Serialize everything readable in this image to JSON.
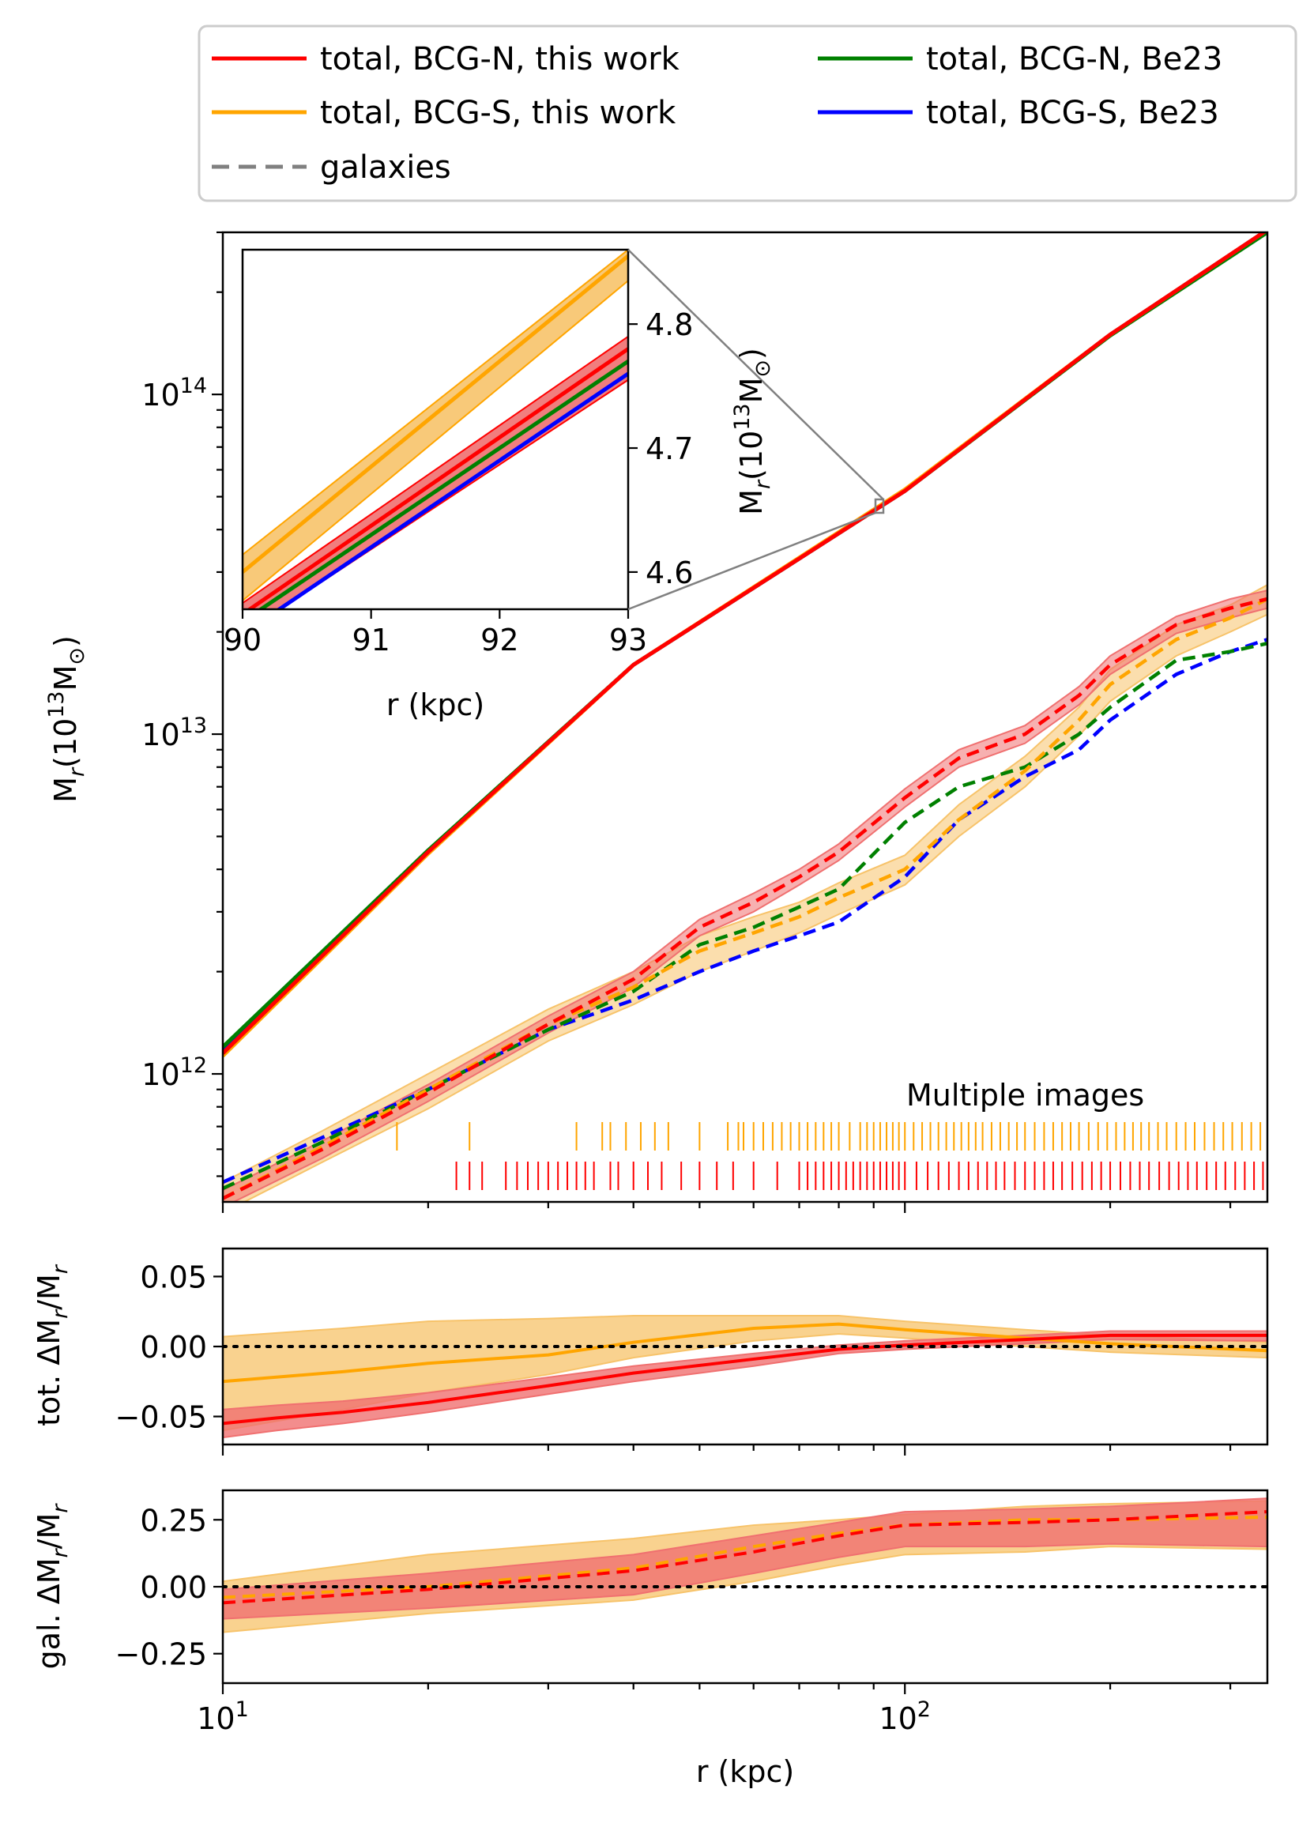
{
  "colors": {
    "bcg_n_this": "#ff0000",
    "bcg_s_this": "#ffa500",
    "bcg_n_be23": "#008000",
    "bcg_s_be23": "#0000ff",
    "galaxies": "#808080",
    "band_red": "#f07070",
    "band_orange": "#f7c36a"
  },
  "legend": {
    "entries": [
      {
        "label": "total, BCG-N, this work",
        "color": "#ff0000",
        "style": "solid"
      },
      {
        "label": "total, BCG-S, this work",
        "color": "#ffa500",
        "style": "solid"
      },
      {
        "label": "galaxies",
        "color": "#808080",
        "style": "dashed"
      },
      {
        "label": "total, BCG-N, Be23",
        "color": "#008000",
        "style": "solid"
      },
      {
        "label": "total, BCG-S, Be23",
        "color": "#0000ff",
        "style": "solid"
      }
    ]
  },
  "chart_data": [
    {
      "type": "line",
      "title": "",
      "xscale": "log",
      "yscale": "log",
      "xlim": [
        10,
        340
      ],
      "ylim": [
        420000000000.0,
        300000000000000.0
      ],
      "xlabel": "",
      "ylabel": "M_r(10^13 M_⊙)",
      "xticks": [
        {
          "label": "",
          "value": 10
        },
        {
          "label": "",
          "value": 100
        }
      ],
      "yticks": [
        {
          "base": "10",
          "exp": "12",
          "value": 1000000000000.0
        },
        {
          "base": "10",
          "exp": "13",
          "value": 10000000000000.0
        },
        {
          "base": "10",
          "exp": "14",
          "value": 100000000000000.0
        }
      ],
      "series": [
        {
          "name": "total, BCG-S, Be23",
          "style": "solid",
          "x": [
            10,
            20,
            40,
            100,
            200,
            340
          ],
          "y": [
            1180000000000.0,
            4500000000000.0,
            16000000000000.0,
            52000000000000.0,
            150000000000000.0,
            305000000000000.0
          ]
        },
        {
          "name": "total, BCG-N, Be23",
          "style": "solid",
          "x": [
            10,
            20,
            40,
            100,
            200,
            340
          ],
          "y": [
            1200000000000.0,
            4550000000000.0,
            16000000000000.0,
            52000000000000.0,
            149000000000000.0,
            300000000000000.0
          ]
        },
        {
          "name": "total, BCG-S, this work",
          "style": "solid",
          "x": [
            10,
            20,
            40,
            100,
            200,
            340
          ],
          "y": [
            1130000000000.0,
            4450000000000.0,
            16000000000000.0,
            52500000000000.0,
            150000000000000.0,
            305000000000000.0
          ]
        },
        {
          "name": "total, BCG-N, this work",
          "style": "solid",
          "x": [
            10,
            20,
            40,
            100,
            200,
            340
          ],
          "y": [
            1150000000000.0,
            4500000000000.0,
            16000000000000.0,
            52000000000000.0,
            150000000000000.0,
            305000000000000.0
          ]
        },
        {
          "name": "galaxies, BCG-S, Be23",
          "style": "dashed",
          "x": [
            10,
            14,
            20,
            30,
            40,
            50,
            60,
            70,
            80,
            100,
            120,
            150,
            180,
            200,
            250,
            300,
            340
          ],
          "y": [
            480000000000.0,
            650000000000.0,
            900000000000.0,
            1350000000000.0,
            1650000000000.0,
            2000000000000.0,
            2300000000000.0,
            2550000000000.0,
            2800000000000.0,
            3800000000000.0,
            5600000000000.0,
            7500000000000.0,
            9000000000000.0,
            11000000000000.0,
            15000000000000.0,
            17500000000000.0,
            19000000000000.0
          ]
        },
        {
          "name": "galaxies, BCG-N, Be23",
          "style": "dashed",
          "x": [
            10,
            14,
            20,
            30,
            40,
            50,
            60,
            70,
            80,
            100,
            120,
            150,
            180,
            200,
            250,
            300,
            340
          ],
          "y": [
            460000000000.0,
            630000000000.0,
            900000000000.0,
            1350000000000.0,
            1750000000000.0,
            2400000000000.0,
            2700000000000.0,
            3100000000000.0,
            3500000000000.0,
            5500000000000.0,
            7000000000000.0,
            8000000000000.0,
            10000000000000.0,
            12000000000000.0,
            16500000000000.0,
            17500000000000.0,
            18500000000000.0
          ]
        },
        {
          "name": "galaxies, BCG-S, this work",
          "style": "dashed",
          "x": [
            10,
            14,
            20,
            30,
            40,
            50,
            60,
            70,
            80,
            100,
            120,
            150,
            180,
            200,
            250,
            300,
            340
          ],
          "y": [
            430000000000.0,
            610000000000.0,
            900000000000.0,
            1400000000000.0,
            1800000000000.0,
            2300000000000.0,
            2600000000000.0,
            2900000000000.0,
            3300000000000.0,
            4000000000000.0,
            5600000000000.0,
            7800000000000.0,
            11000000000000.0,
            14000000000000.0,
            19000000000000.0,
            22000000000000.0,
            25000000000000.0
          ]
        },
        {
          "name": "galaxies, BCG-N, this work",
          "style": "dashed",
          "x": [
            10,
            14,
            20,
            30,
            40,
            50,
            60,
            70,
            80,
            100,
            120,
            150,
            180,
            200,
            250,
            300,
            340
          ],
          "y": [
            430000000000.0,
            600000000000.0,
            880000000000.0,
            1400000000000.0,
            1900000000000.0,
            2700000000000.0,
            3200000000000.0,
            3800000000000.0,
            4500000000000.0,
            6500000000000.0,
            8500000000000.0,
            10000000000000.0,
            13000000000000.0,
            16000000000000.0,
            21000000000000.0,
            23500000000000.0,
            25000000000000.0
          ]
        }
      ],
      "bands": [
        {
          "name": "galaxies, BCG-S, this work",
          "x": [
            10,
            14,
            20,
            30,
            40,
            50,
            60,
            70,
            80,
            100,
            120,
            150,
            180,
            200,
            250,
            300,
            340
          ],
          "lower": [
            390000000000.0,
            550000000000.0,
            790000000000.0,
            1250000000000.0,
            1600000000000.0,
            2000000000000.0,
            2300000000000.0,
            2600000000000.0,
            2950000000000.0,
            3600000000000.0,
            5000000000000.0,
            7000000000000.0,
            9900000000000.0,
            12500000000000.0,
            17000000000000.0,
            20000000000000.0,
            22500000000000.0
          ],
          "upper": [
            480000000000.0,
            680000000000.0,
            1000000000000.0,
            1550000000000.0,
            2000000000000.0,
            2550000000000.0,
            2900000000000.0,
            3200000000000.0,
            3650000000000.0,
            4400000000000.0,
            6200000000000.0,
            8600000000000.0,
            12000000000000.0,
            15500000000000.0,
            21000000000000.0,
            24000000000000.0,
            27500000000000.0
          ]
        },
        {
          "name": "galaxies, BCG-N, this work",
          "x": [
            10,
            14,
            20,
            30,
            40,
            50,
            60,
            70,
            80,
            100,
            120,
            150,
            180,
            200,
            250,
            300,
            340
          ],
          "lower": [
            405000000000.0,
            565000000000.0,
            830000000000.0,
            1320000000000.0,
            1800000000000.0,
            2550000000000.0,
            3000000000000.0,
            3600000000000.0,
            4250000000000.0,
            6100000000000.0,
            8000000000000.0,
            9400000000000.0,
            12200000000000.0,
            15000000000000.0,
            19800000000000.0,
            22000000000000.0,
            23500000000000.0
          ],
          "upper": [
            455000000000.0,
            635000000000.0,
            930000000000.0,
            1480000000000.0,
            2000000000000.0,
            2850000000000.0,
            3400000000000.0,
            4000000000000.0,
            4750000000000.0,
            6900000000000.0,
            9000000000000.0,
            10600000000000.0,
            13800000000000.0,
            17000000000000.0,
            22200000000000.0,
            25000000000000.0,
            26500000000000.0
          ]
        }
      ],
      "annotation": "Multiple images",
      "multiple_images": {
        "BCG-S": {
          "color": "#ffa500",
          "r": [
            18,
            23,
            33,
            36,
            37,
            39,
            41,
            43,
            45,
            50,
            55,
            57,
            58,
            60,
            62,
            64,
            66,
            68,
            70,
            72,
            74,
            76,
            78,
            80,
            83,
            86,
            88,
            90,
            92,
            94,
            96,
            98,
            100,
            103,
            106,
            109,
            112,
            115,
            118,
            121,
            124,
            127,
            130,
            134,
            138,
            142,
            146,
            150,
            155,
            160,
            165,
            170,
            175,
            180,
            186,
            192,
            198,
            204,
            210,
            216,
            222,
            228,
            235,
            242,
            250,
            258,
            266,
            275,
            284,
            293,
            302,
            312,
            322,
            332
          ]
        },
        "BCG-N": {
          "color": "#ff0000",
          "r": [
            22,
            23,
            24,
            26,
            27,
            28,
            29,
            30,
            31,
            32,
            33,
            34,
            35,
            37,
            38,
            40,
            42,
            44,
            47,
            50,
            53,
            56,
            60,
            65,
            70,
            72,
            74,
            76,
            78,
            80,
            82,
            84,
            86,
            88,
            90,
            92,
            94,
            96,
            98,
            100,
            104,
            108,
            112,
            116,
            120,
            124,
            128,
            132,
            136,
            140,
            145,
            150,
            155,
            160,
            165,
            170,
            176,
            182,
            188,
            194,
            200,
            207,
            214,
            221,
            228,
            236,
            244,
            252,
            260,
            268,
            277,
            286,
            295,
            305,
            315,
            325,
            335
          ]
        }
      },
      "inset": {
        "xlim": [
          90,
          93
        ],
        "ylim": [
          4.57,
          4.86
        ],
        "xlabel": "r (kpc)",
        "ylabel": "M_r(10^13 M_⊙)",
        "xticks": [
          {
            "label": "90",
            "value": 90
          },
          {
            "label": "91",
            "value": 91
          },
          {
            "label": "92",
            "value": 92
          },
          {
            "label": "93",
            "value": 93
          }
        ],
        "yticks": [
          {
            "label": "4.6",
            "value": 4.6
          },
          {
            "label": "4.7",
            "value": 4.7
          },
          {
            "label": "4.8",
            "value": 4.8
          }
        ],
        "series": [
          {
            "name": "total, BCG-S, this work",
            "x": [
              90,
              93
            ],
            "y": [
              4.6,
              4.855
            ],
            "lower": [
              4.577,
              4.835
            ],
            "upper": [
              4.614,
              4.86
            ]
          },
          {
            "name": "total, BCG-N, this work",
            "x": [
              90,
              93
            ],
            "y": [
              4.566,
              4.78
            ],
            "lower": [
              4.55,
              4.755
            ],
            "upper": [
              4.575,
              4.79
            ]
          },
          {
            "name": "total, BCG-N, Be23",
            "x": [
              90,
              93
            ],
            "y": [
              4.56,
              4.77
            ]
          },
          {
            "name": "total, BCG-S, Be23",
            "x": [
              90,
              93
            ],
            "y": [
              4.55,
              4.76
            ]
          }
        ],
        "zoom_region": {
          "x": [
            90,
            93
          ],
          "y": [
            4.57,
            4.86
          ]
        }
      }
    },
    {
      "type": "line",
      "xscale": "log",
      "xlim": [
        10,
        340
      ],
      "ylim": [
        -0.07,
        0.07
      ],
      "ylabel": "tot. ΔM_r/M_r",
      "yticks": [
        {
          "label": "0.05",
          "value": 0.05
        },
        {
          "label": "0.00",
          "value": 0.0
        },
        {
          "label": "−0.05",
          "value": -0.05
        }
      ],
      "reference_line": 0,
      "series": [
        {
          "name": "BCG-S",
          "x": [
            10,
            15,
            20,
            30,
            40,
            60,
            80,
            100,
            150,
            200,
            340
          ],
          "y": [
            -0.025,
            -0.018,
            -0.012,
            -0.006,
            0.003,
            0.013,
            0.016,
            0.012,
            0.006,
            0.002,
            -0.003
          ],
          "lower": [
            -0.06,
            -0.045,
            -0.033,
            -0.02,
            -0.008,
            0.004,
            0.009,
            0.006,
            0.0,
            -0.004,
            -0.008
          ],
          "upper": [
            0.007,
            0.013,
            0.018,
            0.02,
            0.022,
            0.022,
            0.022,
            0.018,
            0.012,
            0.008,
            0.003
          ]
        },
        {
          "name": "BCG-N",
          "x": [
            10,
            12,
            15,
            20,
            30,
            40,
            60,
            80,
            100,
            150,
            200,
            340
          ],
          "y": [
            -0.055,
            -0.051,
            -0.047,
            -0.04,
            -0.028,
            -0.019,
            -0.009,
            -0.002,
            0.001,
            0.005,
            0.008,
            0.008
          ],
          "lower": [
            -0.065,
            -0.06,
            -0.055,
            -0.047,
            -0.034,
            -0.025,
            -0.014,
            -0.005,
            -0.002,
            0.002,
            0.005,
            0.004
          ],
          "upper": [
            -0.045,
            -0.042,
            -0.039,
            -0.033,
            -0.022,
            -0.014,
            -0.005,
            0.001,
            0.004,
            0.008,
            0.011,
            0.011
          ]
        }
      ]
    },
    {
      "type": "line",
      "xscale": "log",
      "xlim": [
        10,
        340
      ],
      "ylim": [
        -0.36,
        0.36
      ],
      "xlabel": "r (kpc)",
      "ylabel": "gal. ΔM_r/M_r",
      "xticks": [
        {
          "base": "10",
          "exp": "1",
          "value": 10
        },
        {
          "base": "10",
          "exp": "2",
          "value": 100
        }
      ],
      "yticks": [
        {
          "label": "0.25",
          "value": 0.25
        },
        {
          "label": "0.00",
          "value": 0.0
        },
        {
          "label": "−0.25",
          "value": -0.25
        }
      ],
      "reference_line": 0,
      "series": [
        {
          "name": "BCG-S",
          "x": [
            10,
            20,
            40,
            60,
            80,
            100,
            150,
            200,
            340
          ],
          "y": [
            -0.04,
            0.0,
            0.07,
            0.15,
            0.2,
            0.23,
            0.25,
            0.25,
            0.26
          ],
          "lower": [
            -0.17,
            -0.1,
            -0.05,
            0.02,
            0.08,
            0.12,
            0.13,
            0.15,
            0.14
          ],
          "upper": [
            0.02,
            0.12,
            0.18,
            0.23,
            0.25,
            0.27,
            0.3,
            0.31,
            0.32
          ]
        },
        {
          "name": "BCG-N",
          "x": [
            10,
            20,
            40,
            60,
            80,
            100,
            150,
            200,
            340
          ],
          "y": [
            -0.06,
            -0.01,
            0.06,
            0.13,
            0.19,
            0.23,
            0.24,
            0.25,
            0.28
          ],
          "lower": [
            -0.12,
            -0.08,
            -0.03,
            0.05,
            0.11,
            0.15,
            0.15,
            0.16,
            0.15
          ],
          "upper": [
            -0.01,
            0.05,
            0.12,
            0.19,
            0.24,
            0.28,
            0.29,
            0.3,
            0.33
          ]
        }
      ]
    }
  ]
}
